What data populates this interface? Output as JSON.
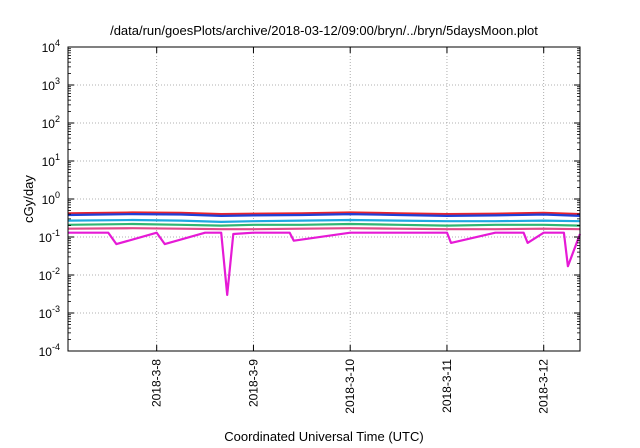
{
  "chart_data": {
    "type": "line",
    "title": "/data/run/goesPlots/archive/2018-03-12/09:00/bryn/../bryn/5daysMoon.plot",
    "xlabel": "Coordinated Universal Time (UTC)",
    "ylabel": "cGy/day",
    "yscale": "log",
    "ylim": [
      0.0001,
      10000
    ],
    "y_ticks": [
      {
        "base": "10",
        "exp": "-4",
        "value": 0.0001
      },
      {
        "base": "10",
        "exp": "-3",
        "value": 0.001
      },
      {
        "base": "10",
        "exp": "-2",
        "value": 0.01
      },
      {
        "base": "10",
        "exp": "-1",
        "value": 0.1
      },
      {
        "base": "10",
        "exp": "0",
        "value": 1
      },
      {
        "base": "10",
        "exp": "1",
        "value": 10
      },
      {
        "base": "10",
        "exp": "2",
        "value": 100
      },
      {
        "base": "10",
        "exp": "3",
        "value": 1000
      },
      {
        "base": "10",
        "exp": "4",
        "value": 10000
      }
    ],
    "xlim": [
      "2018-03-07T02:00",
      "2018-03-12T09:00"
    ],
    "x_ticks": [
      "2018-3-8",
      "2018-3-9",
      "2018-3-10",
      "2018-3-11",
      "2018-3-12"
    ],
    "grid": true,
    "series": [
      {
        "color": "#e8232d",
        "x": [
          "2018-03-07T02:00",
          "2018-03-07T18:00",
          "2018-03-08T06:00",
          "2018-03-08T16:00",
          "2018-03-09T00:00",
          "2018-03-09T12:00",
          "2018-03-10T00:00",
          "2018-03-10T12:00",
          "2018-03-11T00:00",
          "2018-03-11T12:00",
          "2018-03-12T00:00",
          "2018-03-12T09:00"
        ],
        "y": [
          0.42,
          0.44,
          0.43,
          0.4,
          0.41,
          0.42,
          0.44,
          0.42,
          0.4,
          0.41,
          0.43,
          0.4
        ]
      },
      {
        "color": "#1f3fd6",
        "x": [
          "2018-03-07T02:00",
          "2018-03-07T18:00",
          "2018-03-08T06:00",
          "2018-03-08T16:00",
          "2018-03-09T00:00",
          "2018-03-09T12:00",
          "2018-03-10T00:00",
          "2018-03-10T12:00",
          "2018-03-11T00:00",
          "2018-03-11T12:00",
          "2018-03-12T00:00",
          "2018-03-12T09:00"
        ],
        "y": [
          0.38,
          0.4,
          0.39,
          0.36,
          0.37,
          0.38,
          0.4,
          0.38,
          0.36,
          0.37,
          0.39,
          0.36
        ]
      },
      {
        "color": "#1ea8e0",
        "x": [
          "2018-03-07T02:00",
          "2018-03-07T18:00",
          "2018-03-08T06:00",
          "2018-03-08T16:00",
          "2018-03-09T00:00",
          "2018-03-09T12:00",
          "2018-03-10T00:00",
          "2018-03-10T12:00",
          "2018-03-11T00:00",
          "2018-03-11T12:00",
          "2018-03-12T00:00",
          "2018-03-12T09:00"
        ],
        "y": [
          0.27,
          0.28,
          0.27,
          0.25,
          0.26,
          0.27,
          0.28,
          0.27,
          0.26,
          0.26,
          0.27,
          0.26
        ]
      },
      {
        "color": "#2fb673",
        "x": [
          "2018-03-07T02:00",
          "2018-03-07T18:00",
          "2018-03-08T06:00",
          "2018-03-08T16:00",
          "2018-03-09T00:00",
          "2018-03-09T12:00",
          "2018-03-10T00:00",
          "2018-03-10T12:00",
          "2018-03-11T00:00",
          "2018-03-11T12:00",
          "2018-03-12T00:00",
          "2018-03-12T09:00"
        ],
        "y": [
          0.21,
          0.22,
          0.21,
          0.2,
          0.21,
          0.21,
          0.22,
          0.21,
          0.2,
          0.21,
          0.21,
          0.2
        ]
      },
      {
        "color": "#e04a8c",
        "x": [
          "2018-03-07T02:00",
          "2018-03-07T18:00",
          "2018-03-08T06:00",
          "2018-03-08T16:00",
          "2018-03-09T00:00",
          "2018-03-09T12:00",
          "2018-03-10T00:00",
          "2018-03-10T12:00",
          "2018-03-11T00:00",
          "2018-03-11T12:00",
          "2018-03-12T00:00",
          "2018-03-12T09:00"
        ],
        "y": [
          0.165,
          0.17,
          0.165,
          0.16,
          0.16,
          0.165,
          0.17,
          0.165,
          0.16,
          0.16,
          0.165,
          0.16
        ]
      },
      {
        "color": "#e61ad6",
        "x": [
          "2018-03-07T02:00",
          "2018-03-07T12:00",
          "2018-03-07T14:00",
          "2018-03-08T00:00",
          "2018-03-08T02:00",
          "2018-03-08T12:00",
          "2018-03-08T16:00",
          "2018-03-08T17:30",
          "2018-03-08T19:00",
          "2018-03-09T00:00",
          "2018-03-09T09:00",
          "2018-03-09T10:00",
          "2018-03-10T00:00",
          "2018-03-11T00:00",
          "2018-03-11T01:00",
          "2018-03-11T12:00",
          "2018-03-11T19:00",
          "2018-03-11T20:00",
          "2018-03-12T00:00",
          "2018-03-12T05:00",
          "2018-03-12T06:00",
          "2018-03-12T09:00"
        ],
        "y": [
          0.13,
          0.13,
          0.065,
          0.13,
          0.065,
          0.13,
          0.13,
          0.003,
          0.12,
          0.13,
          0.13,
          0.08,
          0.13,
          0.13,
          0.07,
          0.13,
          0.13,
          0.07,
          0.13,
          0.13,
          0.017,
          0.12
        ]
      }
    ]
  }
}
